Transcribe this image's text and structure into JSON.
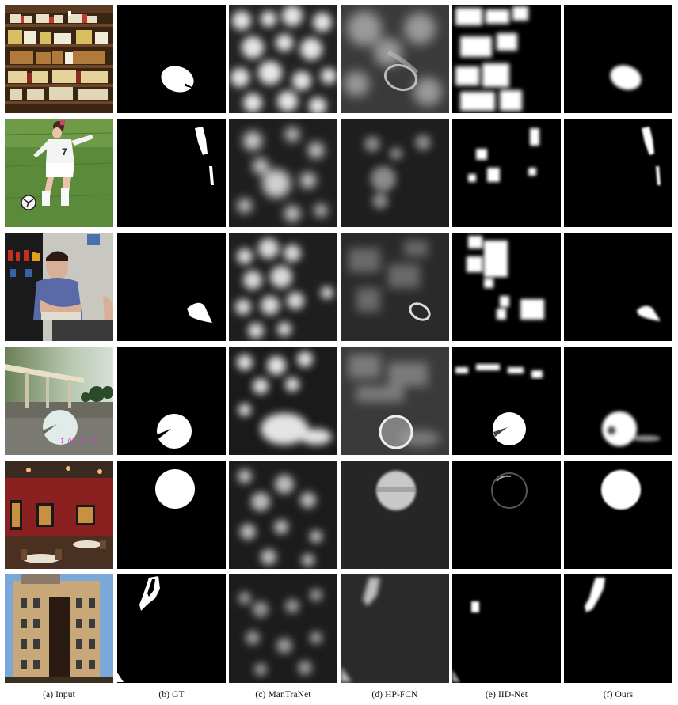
{
  "captions": {
    "input": "(a) Input",
    "gt": "(b) GT",
    "mantranet": "(c) ManTraNet",
    "hpfcn": "(d) HP-FCN",
    "iidnet": "(e) IID-Net",
    "ours": "(f) Ours"
  },
  "rows": [
    {
      "scene": "shop-shelves"
    },
    {
      "scene": "soccer-player"
    },
    {
      "scene": "man-in-room"
    },
    {
      "scene": "gas-station",
      "timestamp_overlay": "1 03 34 46"
    },
    {
      "scene": "restaurant-interior"
    },
    {
      "scene": "building-fire-escape"
    }
  ]
}
